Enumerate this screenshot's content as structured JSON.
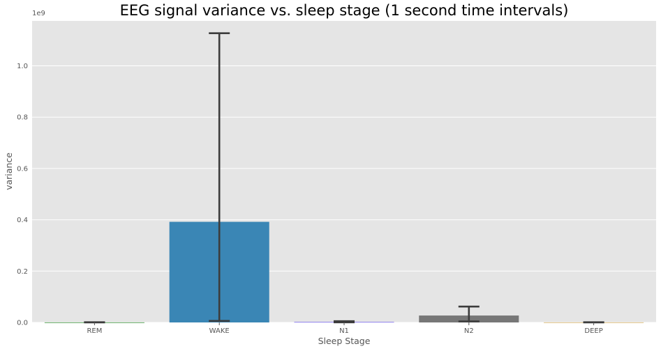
{
  "chart_data": {
    "type": "bar",
    "title": "EEG signal variance vs. sleep stage (1 second time intervals)",
    "xlabel": "Sleep Stage",
    "ylabel": "variance",
    "y_scale_offset": "1e9",
    "ylim": [
      0,
      1.175
    ],
    "y_ticks": [
      "0.0",
      "0.2",
      "0.4",
      "0.6",
      "0.8",
      "1.0"
    ],
    "grid": true,
    "categories": [
      "REM",
      "WAKE",
      "N1",
      "N2",
      "DEEP"
    ],
    "values": [
      0.0003,
      0.392,
      0.002,
      0.027,
      0.0003
    ],
    "error_low": [
      0.0001,
      0.006,
      0.0005,
      0.004,
      0.0001
    ],
    "error_high": [
      0.0008,
      1.127,
      0.005,
      0.062,
      0.0008
    ],
    "colors": [
      "#3a923a",
      "#3a86b5",
      "#7b68ee",
      "#777777",
      "#d8b365"
    ],
    "error_color": "#3c3c3c",
    "background": "#e5e5e5"
  }
}
